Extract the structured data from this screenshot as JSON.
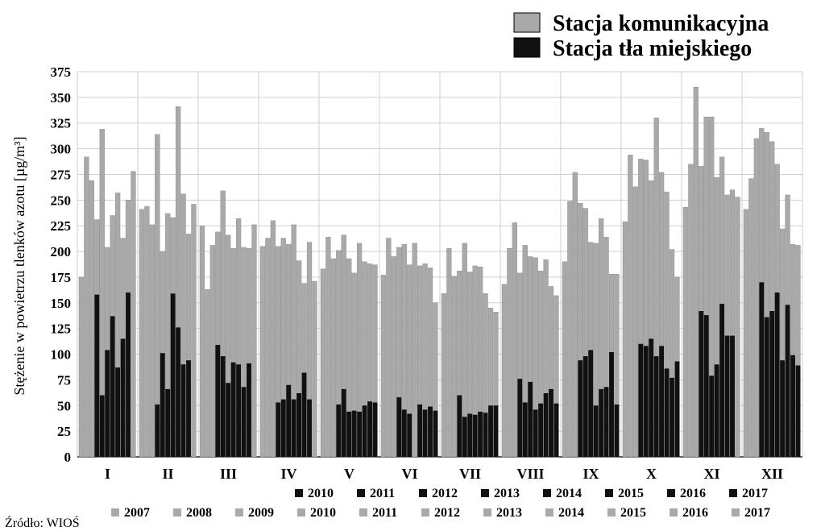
{
  "chart_data": {
    "type": "bar",
    "ylabel": "Stężenie w powietrzu tlenków azotu [µg/m³]",
    "ylim": [
      0,
      375
    ],
    "yticks": [
      0,
      25,
      50,
      75,
      100,
      125,
      150,
      175,
      200,
      225,
      250,
      275,
      300,
      325,
      350,
      375
    ],
    "grid": true,
    "categories": [
      "I",
      "II",
      "III",
      "IV",
      "V",
      "VI",
      "VII",
      "VIII",
      "IX",
      "X",
      "XI",
      "XII"
    ],
    "series": [
      {
        "name": "Stacja komunikacyjna",
        "color": "#a9a9a9",
        "years": [
          "2007",
          "2008",
          "2009",
          "2010",
          "2011",
          "2012",
          "2013",
          "2014",
          "2015",
          "2016",
          "2017"
        ],
        "values": [
          [
            175,
            292,
            269,
            231,
            319,
            204,
            235,
            257,
            213,
            250,
            278
          ],
          [
            241,
            244,
            226,
            314,
            200,
            237,
            233,
            341,
            256,
            217,
            246
          ],
          [
            225,
            163,
            206,
            219,
            259,
            216,
            203,
            232,
            204,
            203,
            226
          ],
          [
            205,
            213,
            230,
            205,
            213,
            207,
            226,
            191,
            169,
            209,
            171
          ],
          [
            183,
            214,
            193,
            201,
            216,
            193,
            179,
            208,
            190,
            188,
            187
          ],
          [
            177,
            213,
            195,
            204,
            207,
            187,
            208,
            186,
            188,
            184,
            150
          ],
          [
            159,
            203,
            176,
            181,
            208,
            180,
            186,
            185,
            159,
            145,
            141
          ],
          [
            168,
            203,
            228,
            179,
            206,
            195,
            194,
            181,
            192,
            166,
            157
          ],
          [
            190,
            249,
            277,
            247,
            242,
            209,
            208,
            232,
            214,
            178,
            178
          ],
          [
            229,
            294,
            263,
            290,
            289,
            269,
            330,
            277,
            258,
            202,
            175
          ],
          [
            243,
            285,
            360,
            283,
            331,
            331,
            272,
            292,
            255,
            260,
            253
          ],
          [
            241,
            271,
            310,
            320,
            316,
            307,
            285,
            222,
            255,
            207,
            206
          ]
        ]
      },
      {
        "name": "Stacja tła miejskiego",
        "color": "#111111",
        "years": [
          "2010",
          "2011",
          "2012",
          "2013",
          "2014",
          "2015",
          "2016",
          "2017"
        ],
        "values": [
          [
            158,
            60,
            104,
            137,
            87,
            115,
            160,
            null
          ],
          [
            51,
            101,
            66,
            159,
            126,
            90,
            94,
            null
          ],
          [
            109,
            98,
            72,
            92,
            90,
            68,
            91,
            null
          ],
          [
            53,
            56,
            70,
            56,
            62,
            82,
            56,
            null
          ],
          [
            51,
            66,
            44,
            45,
            44,
            50,
            54,
            53
          ],
          [
            58,
            46,
            42,
            null,
            51,
            46,
            49,
            45
          ],
          [
            60,
            39,
            42,
            41,
            44,
            43,
            50,
            50
          ],
          [
            76,
            53,
            73,
            46,
            52,
            62,
            66,
            52
          ],
          [
            94,
            98,
            104,
            50,
            66,
            68,
            102,
            51
          ],
          [
            110,
            108,
            115,
            98,
            108,
            86,
            77,
            93
          ],
          [
            142,
            138,
            79,
            90,
            149,
            118,
            118,
            null
          ],
          [
            170,
            136,
            142,
            160,
            94,
            148,
            99,
            89
          ]
        ]
      }
    ],
    "legend": {
      "placement": "top-right",
      "comm_label": "Stacja komunikacyjna",
      "tla_label": "Stacja tła miejskiego",
      "years_tla": [
        "2010",
        "2011",
        "2012",
        "2013",
        "2014",
        "2015",
        "2016",
        "2017"
      ],
      "years_comm": [
        "2007",
        "2008",
        "2009",
        "2010",
        "2011",
        "2012",
        "2013",
        "2014",
        "2015",
        "2016",
        "2017"
      ]
    },
    "source": "Źródło: WIOŚ"
  }
}
